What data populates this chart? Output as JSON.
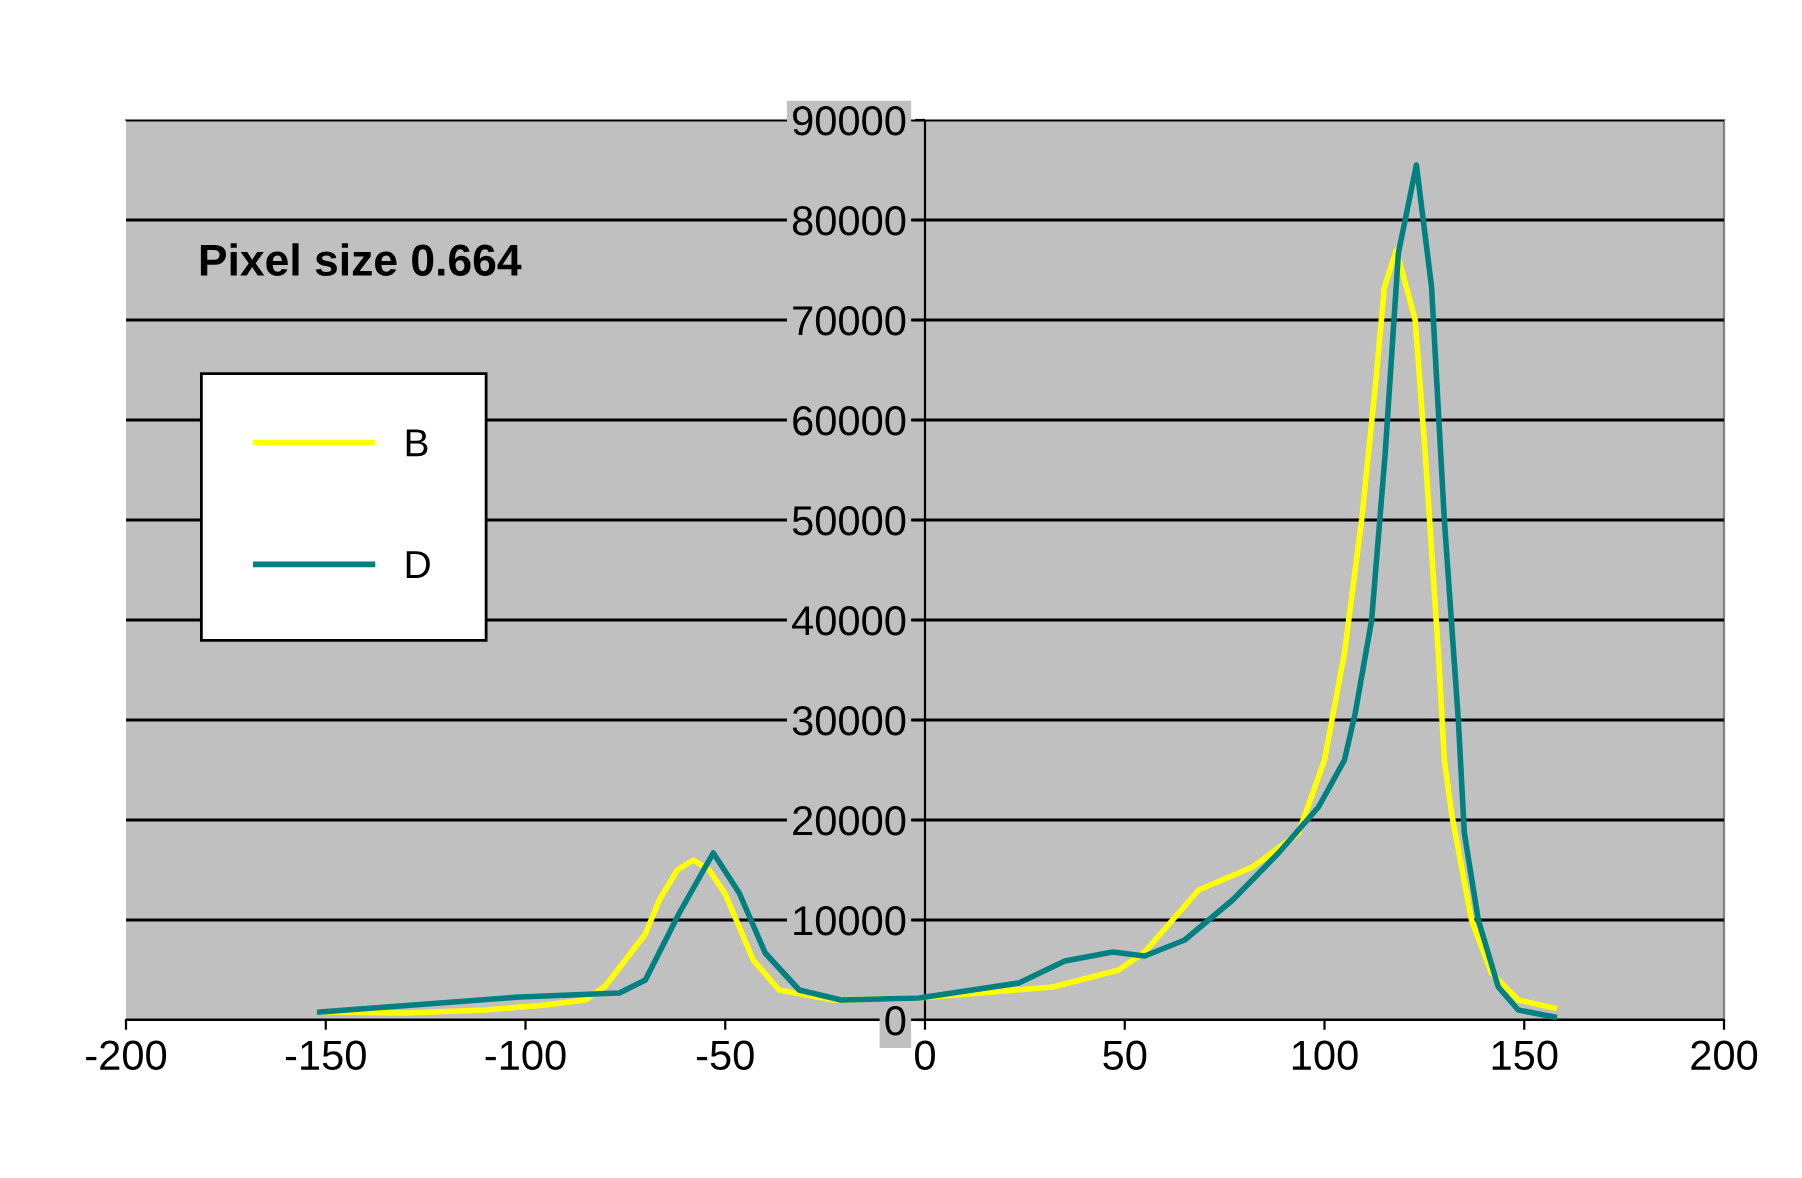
{
  "chart_data": {
    "type": "line",
    "annotations": [
      "Pixel size 0.664"
    ],
    "xlim": [
      -200,
      200
    ],
    "xticks": [
      -200,
      -150,
      -100,
      -50,
      0,
      50,
      100,
      150,
      200
    ],
    "ylim": [
      0,
      90000
    ],
    "yticks": [
      0,
      10000,
      20000,
      30000,
      40000,
      50000,
      60000,
      70000,
      80000,
      90000
    ],
    "grid": "y",
    "legend": "left",
    "marker": "none",
    "line_style": "solid",
    "series": [
      {
        "name": "B",
        "color": "#ffff00",
        "x": [
          -151.5,
          -130,
          -110,
          -95,
          -85,
          -80,
          -70,
          -66.5,
          -62,
          -58,
          -54,
          -50,
          -43,
          -36.5,
          -23,
          -1.5,
          32,
          48.5,
          55,
          68.5,
          82,
          93.5,
          100,
          105,
          109.3,
          112.7,
          115,
          118,
          122.7,
          125.2,
          128.5,
          130,
          131.8,
          136.8,
          141.8,
          148.5,
          157.5
        ],
        "values": [
          800,
          700,
          1000,
          1500,
          2000,
          3400,
          8600,
          12000,
          15000,
          16000,
          15000,
          12600,
          6000,
          3000,
          2000,
          2200,
          3300,
          5000,
          6800,
          13000,
          15300,
          18700,
          26000,
          36700,
          50000,
          63300,
          73300,
          77000,
          70000,
          56700,
          36700,
          26000,
          20700,
          10000,
          4700,
          2000,
          1200
        ]
      },
      {
        "name": "D",
        "color": "#008080",
        "x": [
          -151.5,
          -101.5,
          -76.5,
          -70,
          -61.5,
          -53,
          -46.5,
          -40,
          -31.5,
          -21,
          -1.5,
          23.5,
          35,
          47,
          55,
          65,
          77,
          88.5,
          98.5,
          105,
          107.7,
          111.8,
          115.2,
          118.5,
          123,
          126.8,
          130,
          133.5,
          135,
          138.5,
          143.5,
          148.5,
          157.5
        ],
        "values": [
          800,
          2300,
          2700,
          4000,
          10700,
          16700,
          12700,
          6700,
          3000,
          2000,
          2200,
          3700,
          5900,
          6800,
          6400,
          8000,
          12000,
          16700,
          21300,
          26000,
          30700,
          40000,
          56700,
          76700,
          85500,
          73300,
          50000,
          30000,
          18700,
          10000,
          3300,
          1000,
          300
        ]
      }
    ]
  }
}
